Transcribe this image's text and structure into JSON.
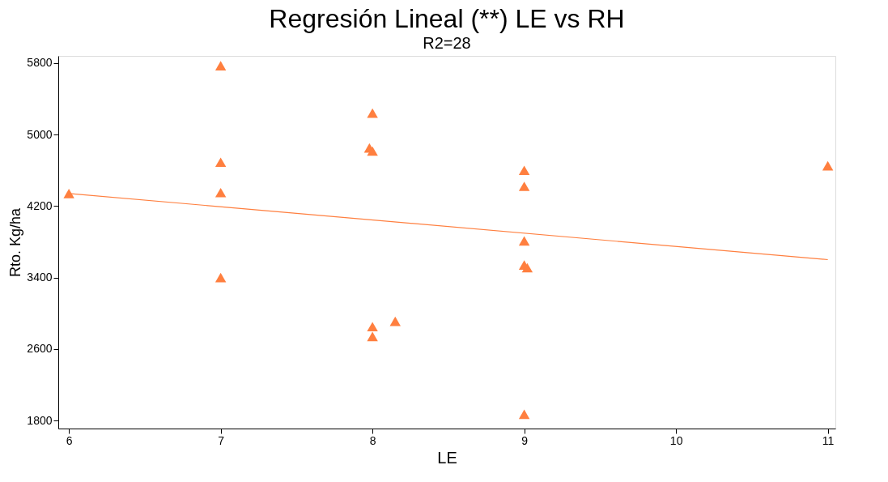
{
  "chart_data": {
    "type": "scatter",
    "title": "Regresión Lineal (**) LE vs RH",
    "subtitle": "R2=28",
    "xlabel": "LE",
    "ylabel": "Rto. Kg/ha",
    "xlim": [
      5.93,
      11.05
    ],
    "xticks": [
      6,
      7,
      8,
      9,
      10,
      11
    ],
    "ylim": [
      1710,
      5880
    ],
    "yticks": [
      1800,
      2600,
      3400,
      4200,
      5000,
      5800
    ],
    "grid": false,
    "series": [
      {
        "marker": "triangle",
        "color": "#ff7f3f",
        "x": [
          6,
          7,
          7,
          7,
          7,
          8,
          7.98,
          8,
          8,
          8,
          8.15,
          9,
          9,
          9,
          9,
          9.02,
          9,
          11
        ],
        "values": [
          4340,
          5770,
          4690,
          4350,
          3400,
          5240,
          4850,
          4815,
          2850,
          2740,
          2910,
          4600,
          4420,
          3810,
          3540,
          3510,
          1870,
          4650
        ]
      },
      {
        "type": "line",
        "color": "#ff7f3f",
        "x": [
          6,
          11
        ],
        "values": [
          4340,
          3600
        ]
      }
    ]
  }
}
